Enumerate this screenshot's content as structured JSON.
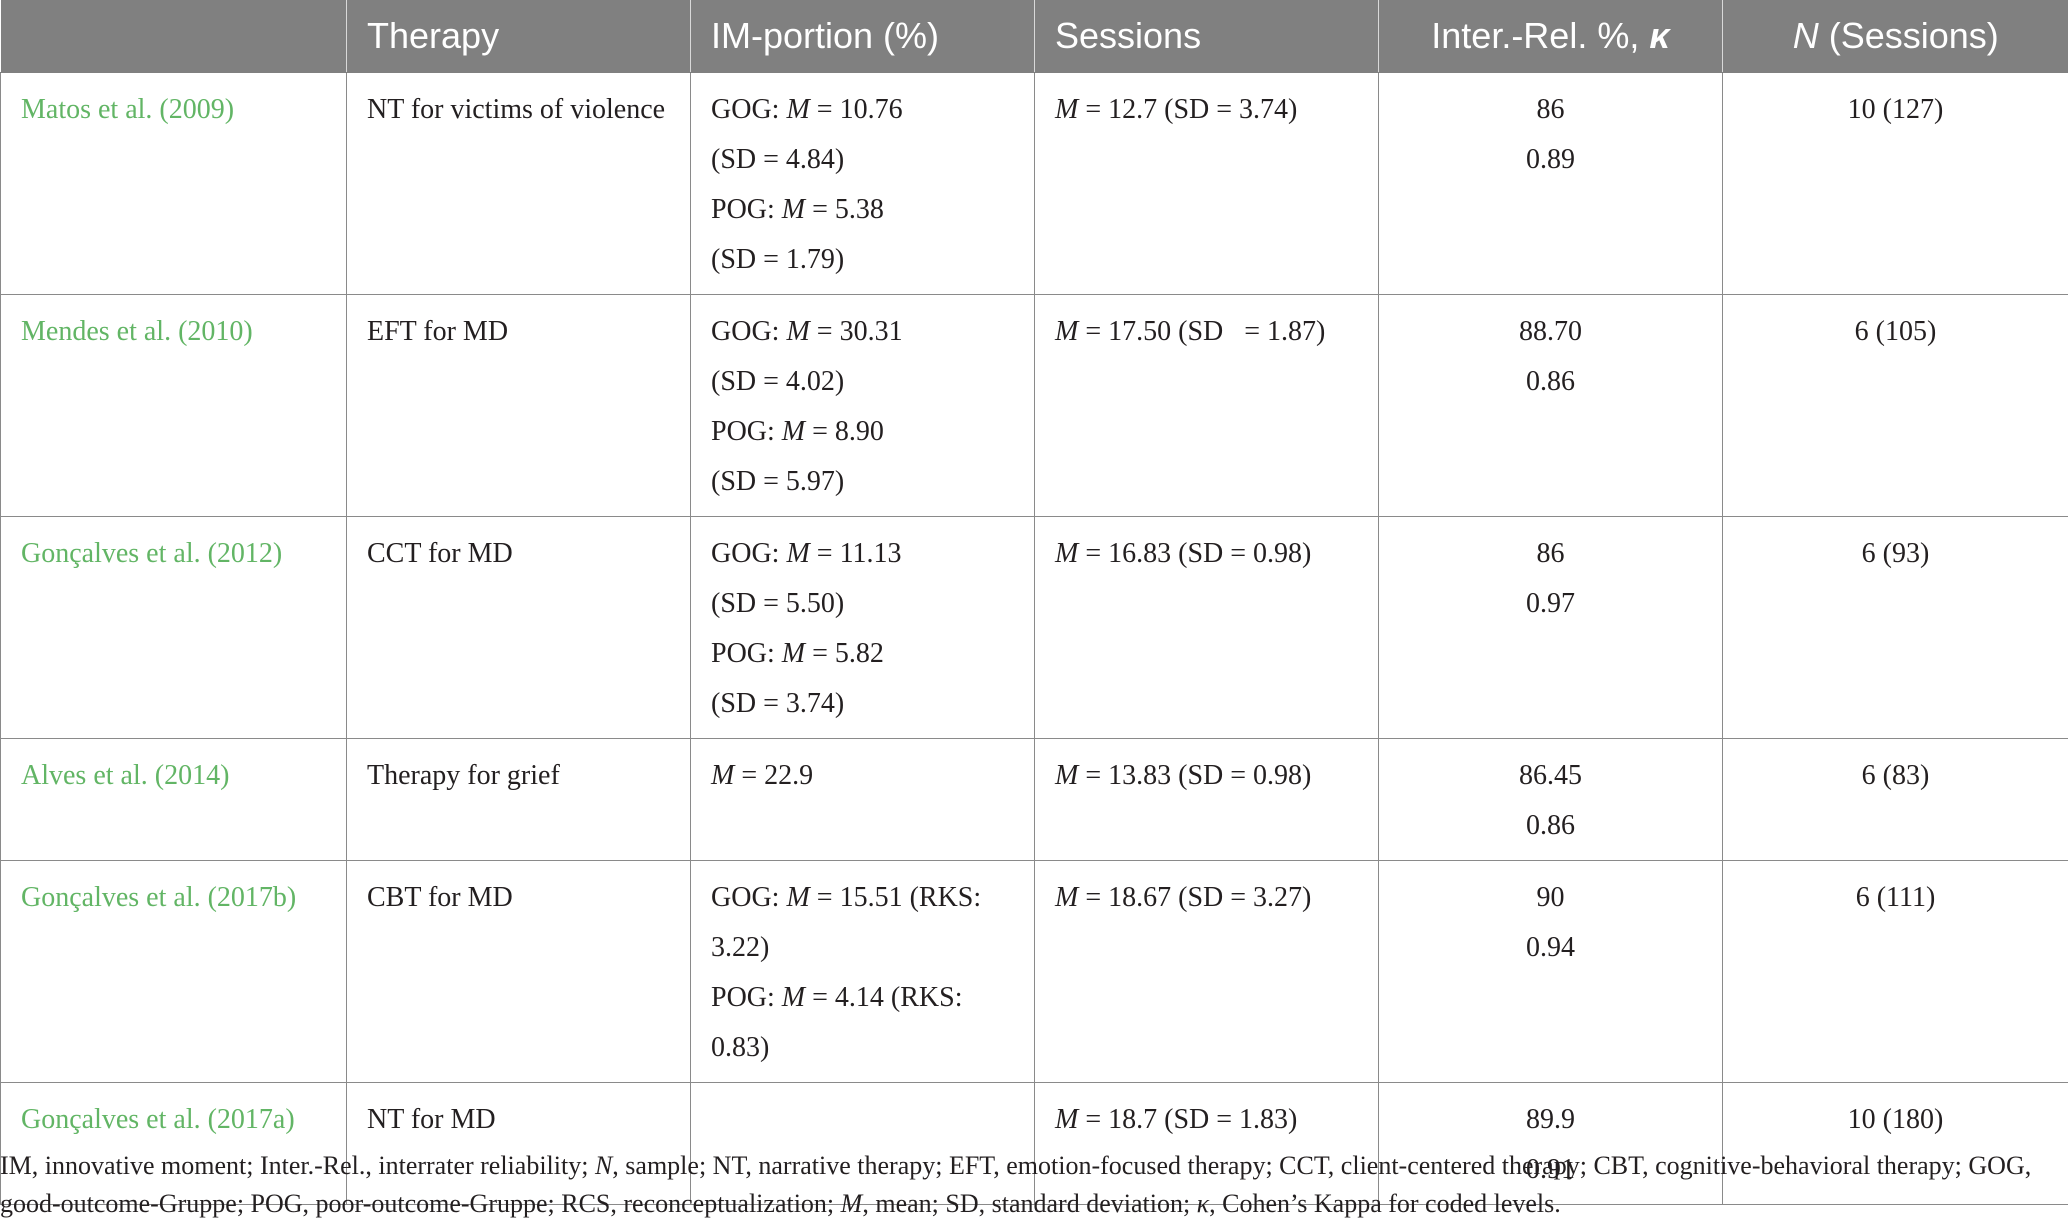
{
  "table": {
    "headers": {
      "study": "",
      "therapy": "Therapy",
      "im_portion": "IM-portion (%)",
      "sessions": "Sessions",
      "inter_rel": "Inter.-Rel. %, ",
      "inter_rel_kappa": "κ",
      "n_italic": "N",
      "n_sessions": " (Sessions)"
    },
    "rows": [
      {
        "study": "Matos et al. (2009)",
        "therapy": "NT for victims of violence",
        "im": {
          "l1_pre": "GOG: ",
          "l1_m": "M",
          "l1_post": " = 10.76",
          "l2": "(SD = 4.84)",
          "l3_pre": "POG: ",
          "l3_m": "M",
          "l3_post": " = 5.38",
          "l4": "(SD = 1.79)"
        },
        "sessions_m": "M",
        "sessions_rest": " = 12.7 (SD = 3.74)",
        "inter_pct": "86",
        "inter_kappa": "0.89",
        "n": "10 (127)"
      },
      {
        "study": "Mendes et al. (2010)",
        "therapy": "EFT for MD",
        "im": {
          "l1_pre": "GOG: ",
          "l1_m": "M",
          "l1_post": " = 30.31",
          "l2": "(SD = 4.02)",
          "l3_pre": "POG: ",
          "l3_m": "M",
          "l3_post": " = 8.90",
          "l4": "(SD = 5.97)"
        },
        "sessions_m": "M",
        "sessions_rest": " = 17.50 (SD   = 1.87)",
        "inter_pct": "88.70",
        "inter_kappa": "0.86",
        "n": "6 (105)"
      },
      {
        "study": "Gonçalves et al. (2012)",
        "therapy": "CCT for MD",
        "im": {
          "l1_pre": "GOG: ",
          "l1_m": "M",
          "l1_post": " = 11.13",
          "l2": "(SD = 5.50)",
          "l3_pre": "POG: ",
          "l3_m": "M",
          "l3_post": " = 5.82",
          "l4": "(SD = 3.74)"
        },
        "sessions_m": "M",
        "sessions_rest": " = 16.83 (SD = 0.98)",
        "inter_pct": "86",
        "inter_kappa": "0.97",
        "n": "6 (93)"
      },
      {
        "study": "Alves et al. (2014)",
        "therapy": "Therapy for grief",
        "im_m": "M",
        "im_rest": " = 22.9",
        "sessions_m": "M",
        "sessions_rest": " = 13.83 (SD = 0.98)",
        "inter_pct": "86.45",
        "inter_kappa": "0.86",
        "n": "6 (83)"
      },
      {
        "study": "Gonçalves et al. (2017b)",
        "therapy": "CBT for MD",
        "im": {
          "l1_pre": "GOG: ",
          "l1_m": "M",
          "l1_post": " = 15.51 (RKS:",
          "l2": "3.22)",
          "l3_pre": "POG: ",
          "l3_m": "M",
          "l3_post": " = 4.14 (RKS:",
          "l4": "0.83)"
        },
        "sessions_m": "M",
        "sessions_rest": " = 18.67 (SD = 3.27)",
        "inter_pct": "90",
        "inter_kappa": "0.94",
        "n": "6 (111)"
      },
      {
        "study": "Gonçalves et al. (2017a)",
        "therapy": "NT for MD",
        "im_empty": "",
        "sessions_m": "M",
        "sessions_rest": " = 18.7 (SD = 1.83)",
        "inter_pct": "89.9",
        "inter_kappa": "0.91",
        "n": "10 (180)"
      }
    ]
  },
  "footnote": {
    "p1": "IM, innovative moment; Inter.-Rel., interrater reliability; ",
    "n_italic": "N",
    "p2": ", sample; NT, narrative therapy; EFT, emotion-focused therapy; CCT, client-centered therapy; CBT, cognitive-behavioral therapy; GOG, good-outcome-Gruppe; POG, poor-outcome-Gruppe; RCS, reconceptualization; ",
    "m_italic": "M",
    "p3": ", mean; SD, standard deviation; ",
    "kappa_italic": "κ",
    "p4": ", Cohen’s Kappa for coded levels."
  },
  "colors": {
    "header_bg": "#808080",
    "header_text": "#ffffff",
    "study_link": "#62b565",
    "grid": "#8a8a8a"
  }
}
